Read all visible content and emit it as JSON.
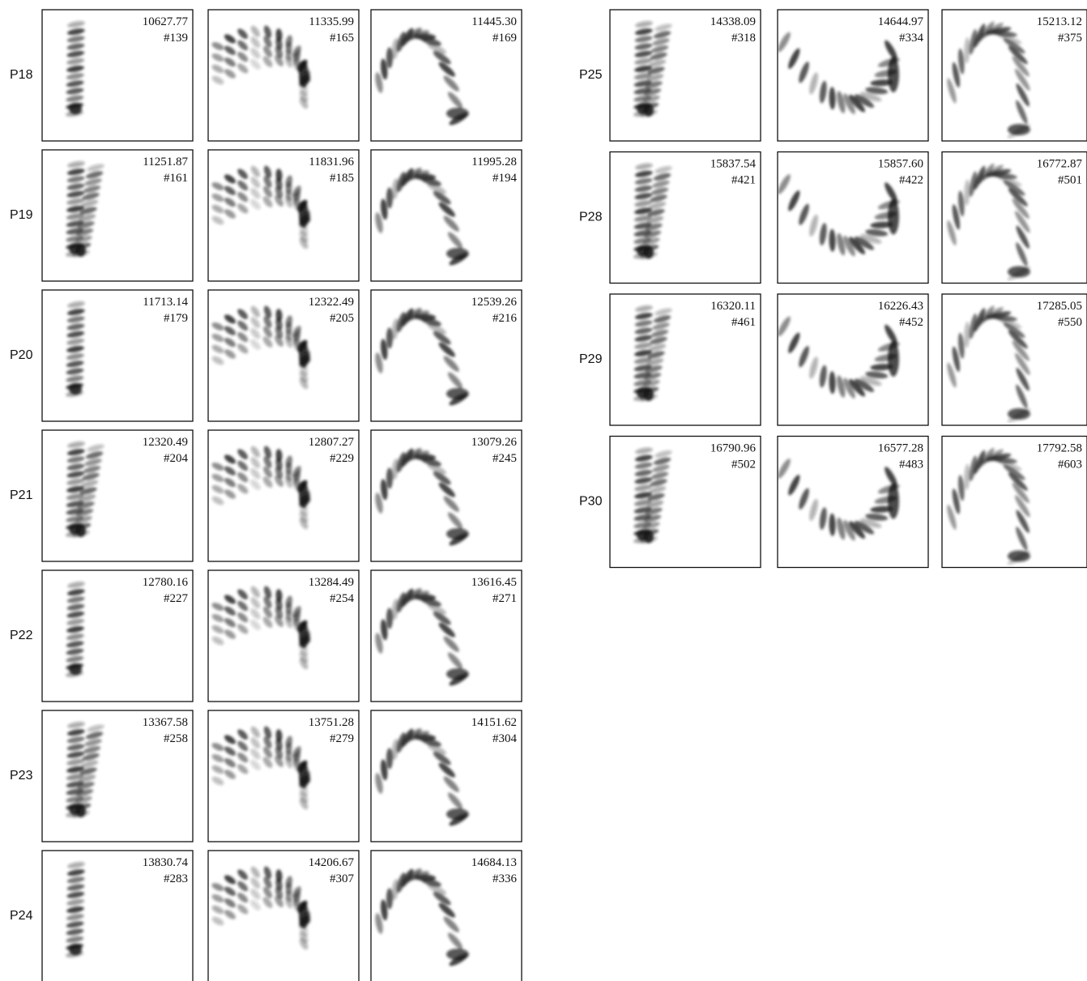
{
  "left": {
    "rows": [
      {
        "label": "P18",
        "panels": [
          {
            "energy": "10627.77",
            "index": "#139"
          },
          {
            "energy": "11335.99",
            "index": "#165"
          },
          {
            "energy": "11445.30",
            "index": "#169"
          }
        ]
      },
      {
        "label": "P19",
        "panels": [
          {
            "energy": "11251.87",
            "index": "#161"
          },
          {
            "energy": "11831.96",
            "index": "#185"
          },
          {
            "energy": "11995.28",
            "index": "#194"
          }
        ]
      },
      {
        "label": "P20",
        "panels": [
          {
            "energy": "11713.14",
            "index": "#179"
          },
          {
            "energy": "12322.49",
            "index": "#205"
          },
          {
            "energy": "12539.26",
            "index": "#216"
          }
        ]
      },
      {
        "label": "P21",
        "panels": [
          {
            "energy": "12320.49",
            "index": "#204"
          },
          {
            "energy": "12807.27",
            "index": "#229"
          },
          {
            "energy": "13079.26",
            "index": "#245"
          }
        ]
      },
      {
        "label": "P22",
        "panels": [
          {
            "energy": "12780.16",
            "index": "#227"
          },
          {
            "energy": "13284.49",
            "index": "#254"
          },
          {
            "energy": "13616.45",
            "index": "#271"
          }
        ]
      },
      {
        "label": "P23",
        "panels": [
          {
            "energy": "13367.58",
            "index": "#258"
          },
          {
            "energy": "13751.28",
            "index": "#279"
          },
          {
            "energy": "14151.62",
            "index": "#304"
          }
        ]
      },
      {
        "label": "P24",
        "panels": [
          {
            "energy": "13830.74",
            "index": "#283"
          },
          {
            "energy": "14206.67",
            "index": "#307"
          },
          {
            "energy": "14684.13",
            "index": "#336"
          }
        ]
      }
    ]
  },
  "right": {
    "rows": [
      {
        "label": "P25",
        "panels": [
          {
            "energy": "14338.09",
            "index": "#318"
          },
          {
            "energy": "14644.97",
            "index": "#334"
          },
          {
            "energy": "15213.12",
            "index": "#375"
          }
        ]
      },
      {
        "label": "P28",
        "panels": [
          {
            "energy": "15837.54",
            "index": "#421"
          },
          {
            "energy": "15857.60",
            "index": "#422"
          },
          {
            "energy": "16772.87",
            "index": "#501"
          }
        ]
      },
      {
        "label": "P29",
        "panels": [
          {
            "energy": "16320.11",
            "index": "#461"
          },
          {
            "energy": "16226.43",
            "index": "#452"
          },
          {
            "energy": "17285.05",
            "index": "#550"
          }
        ]
      },
      {
        "label": "P30",
        "panels": [
          {
            "energy": "16790.96",
            "index": "#502"
          },
          {
            "energy": "16577.28",
            "index": "#483"
          },
          {
            "energy": "17792.58",
            "index": "#603"
          }
        ]
      }
    ]
  }
}
